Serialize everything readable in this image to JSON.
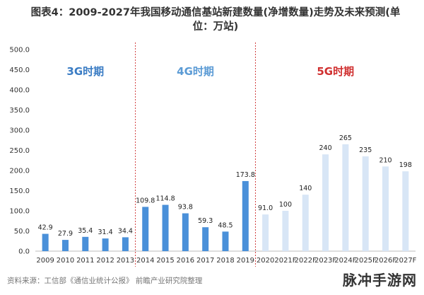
{
  "title": "图表4：2009-2027年我国移动通信基站新建数量(净增数量)走势及未来预测(单位：万站)",
  "source": "资料来源：工信部《通信业统计公报》 前瞻产业研究院整理",
  "watermark": "脉冲手游网",
  "colors": {
    "bar_actual": "#4a90d9",
    "bar_forecast": "#d8e6f6",
    "divider": "#d04040",
    "label_3g": "#3a7cc4",
    "label_4g": "#5b9bd5",
    "label_5g": "#d03030"
  },
  "chart_data": {
    "type": "bar",
    "title": "图表4：2009-2027年我国移动通信基站新建数量(净增数量)走势及未来预测(单位：万站)",
    "categories": [
      "2009",
      "2010",
      "2011",
      "2012",
      "2013",
      "2014",
      "2015",
      "2016",
      "2017",
      "2018",
      "2019",
      "2020",
      "2021F",
      "2022F",
      "2023F",
      "2024F",
      "2025F",
      "2026F",
      "2027F"
    ],
    "values": [
      42.9,
      27.9,
      35.4,
      31.4,
      34.4,
      109.8,
      114.8,
      93.8,
      59.3,
      48.5,
      173.8,
      91.0,
      100,
      140,
      240,
      265,
      235,
      210,
      198
    ],
    "value_labels": [
      "42.9",
      "27.9",
      "35.4",
      "31.4",
      "34.4",
      "109.8",
      "114.8",
      "93.8",
      "59.3",
      "48.5",
      "173.8",
      "91.0",
      "100",
      "140",
      "240",
      "265",
      "235",
      "210",
      "198"
    ],
    "ylim": [
      0,
      500
    ],
    "yticks": [
      "0.0",
      "50.0",
      "100.0",
      "150.0",
      "200.0",
      "250.0",
      "300.0",
      "350.0",
      "400.0",
      "450.0",
      "500.0"
    ],
    "periods": [
      {
        "label": "3G时期",
        "start": 0,
        "end": 4
      },
      {
        "label": "4G时期",
        "start": 5,
        "end": 10
      },
      {
        "label": "5G时期",
        "start": 11,
        "end": 18
      }
    ],
    "forecast_start": 11,
    "grid": false
  }
}
